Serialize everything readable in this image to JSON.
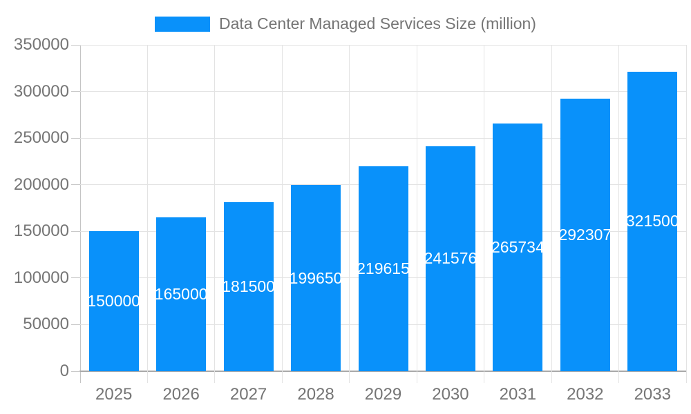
{
  "legend": {
    "label": "Data Center Managed Services Size (million)"
  },
  "colors": {
    "bar": "#0991fa",
    "bar_label": "#ffffff",
    "axis_text": "#757575",
    "gridline": "#e3e3e3",
    "axis_line": "#a9a9a9"
  },
  "chart_data": {
    "type": "bar",
    "title": "Data Center Managed Services Size (million)",
    "categories": [
      "2025",
      "2026",
      "2027",
      "2028",
      "2029",
      "2030",
      "2031",
      "2032",
      "2033"
    ],
    "values": [
      150000,
      165000,
      181500,
      199650,
      219615,
      241576,
      265734,
      292307,
      321500
    ],
    "bar_labels": [
      "150000",
      "165000",
      "181500",
      "199650",
      "219615",
      "241576",
      "265734",
      "292307",
      "321500"
    ],
    "yticks": [
      "0",
      "50000",
      "100000",
      "150000",
      "200000",
      "250000",
      "300000",
      "350000"
    ],
    "ylim": [
      0,
      350000
    ],
    "ytick_step": 50000,
    "xlabel": "",
    "ylabel": "",
    "grid": true,
    "legend_position": "top",
    "bar_label_position": "center"
  }
}
